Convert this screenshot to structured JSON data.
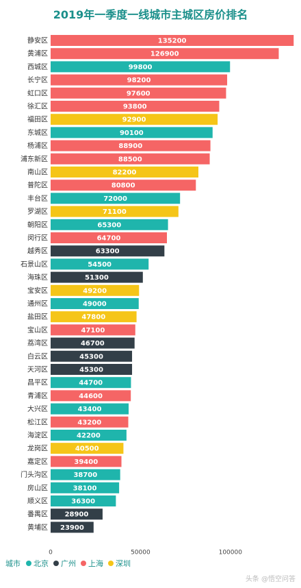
{
  "chart_data": {
    "type": "bar",
    "orientation": "horizontal",
    "title": "2019年一季度一线城市主城区房价排名",
    "categories": [
      "静安区",
      "黄浦区",
      "西城区",
      "长宁区",
      "虹口区",
      "徐汇区",
      "福田区",
      "东城区",
      "杨浦区",
      "浦东新区",
      "南山区",
      "普陀区",
      "丰台区",
      "罗湖区",
      "朝阳区",
      "闵行区",
      "越秀区",
      "石景山区",
      "海珠区",
      "宝安区",
      "通州区",
      "盐田区",
      "宝山区",
      "荔湾区",
      "白云区",
      "天河区",
      "昌平区",
      "青浦区",
      "大兴区",
      "松江区",
      "海淀区",
      "龙岗区",
      "嘉定区",
      "门头沟区",
      "房山区",
      "顺义区",
      "番禺区",
      "黄埔区"
    ],
    "values": [
      135200,
      126900,
      99800,
      98200,
      97600,
      93800,
      92900,
      90100,
      88900,
      88500,
      82200,
      80800,
      72000,
      71100,
      65300,
      64700,
      63300,
      54500,
      51300,
      49200,
      49000,
      47800,
      47100,
      46700,
      45300,
      45300,
      44700,
      44600,
      43400,
      43200,
      42200,
      40500,
      39400,
      38700,
      38100,
      36300,
      28900,
      23900
    ],
    "bar_cities": [
      "上海",
      "上海",
      "北京",
      "上海",
      "上海",
      "上海",
      "深圳",
      "北京",
      "上海",
      "上海",
      "深圳",
      "上海",
      "北京",
      "深圳",
      "北京",
      "上海",
      "广州",
      "北京",
      "广州",
      "深圳",
      "北京",
      "深圳",
      "上海",
      "广州",
      "广州",
      "广州",
      "北京",
      "上海",
      "北京",
      "上海",
      "北京",
      "深圳",
      "上海",
      "北京",
      "北京",
      "北京",
      "广州",
      "广州"
    ],
    "x_ticks": [
      "0",
      "50000",
      "100000"
    ],
    "xlim": [
      0,
      137000
    ],
    "grid": false,
    "legend_title": "城市",
    "legend_placement": "bottom-left",
    "legend": [
      {
        "name": "北京",
        "color": "#1fb5ac"
      },
      {
        "name": "广州",
        "color": "#333f48"
      },
      {
        "name": "上海",
        "color": "#f56565"
      },
      {
        "name": "深圳",
        "color": "#f5c518"
      }
    ]
  },
  "watermark": "头条 @悟空问答"
}
